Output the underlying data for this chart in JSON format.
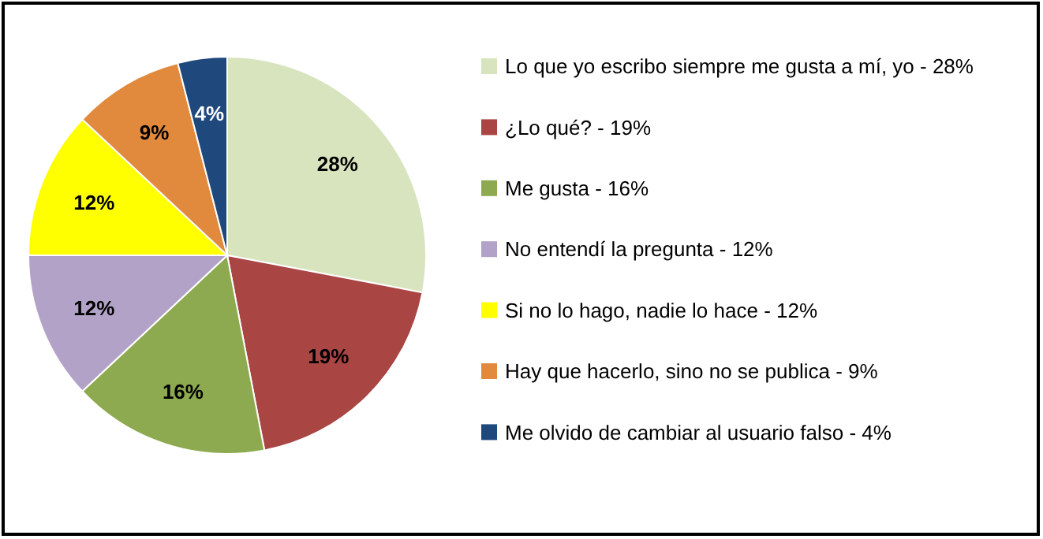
{
  "chart_data": {
    "type": "pie",
    "categories": [
      "Lo que yo escribo siempre me gusta a mí, yo - 28%",
      "¿Lo qué? - 19%",
      "Me gusta - 16%",
      "No entendí la pregunta - 12%",
      "Si no lo hago, nadie lo hace - 12%",
      "Hay que hacerlo, sino no se publica - 9%",
      "Me olvido de cambiar al usuario falso - 4%"
    ],
    "values": [
      28,
      19,
      16,
      12,
      12,
      9,
      4
    ],
    "value_labels": [
      "28%",
      "19%",
      "16%",
      "12%",
      "12%",
      "9%",
      "4%"
    ],
    "colors": [
      "#d7e4bd",
      "#a94543",
      "#8eaa50",
      "#b3a2c7",
      "#ffff00",
      "#e18a3e",
      "#1f497d"
    ],
    "legend": "right"
  }
}
